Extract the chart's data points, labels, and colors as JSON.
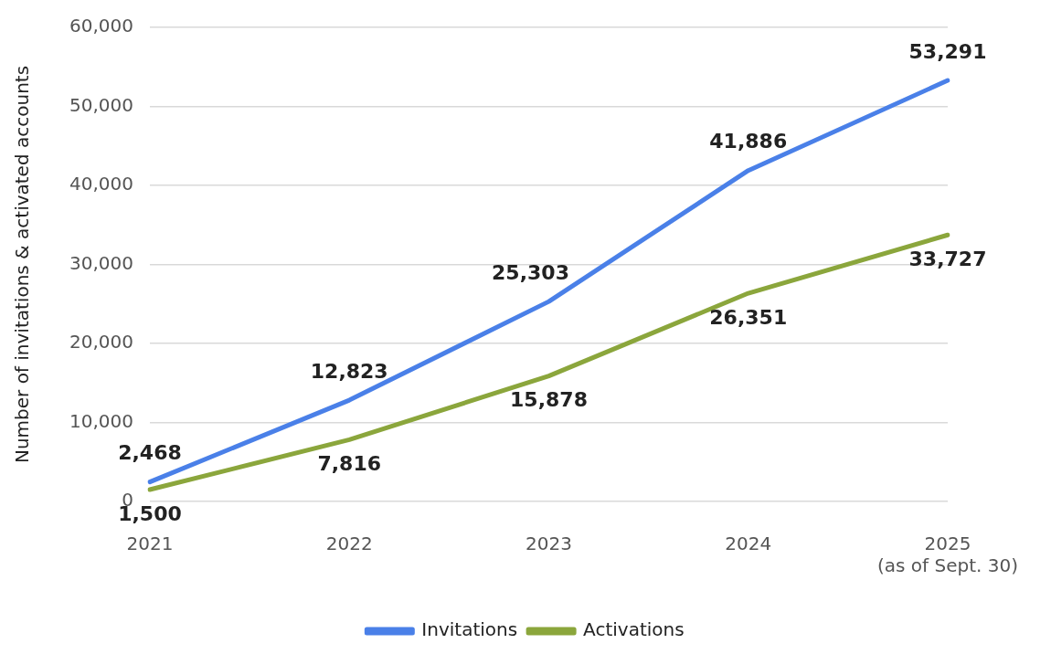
{
  "chart_data": {
    "type": "line",
    "ylabel": "Number of invitations & activated accounts",
    "categories": [
      "2021",
      "2022",
      "2023",
      "2024",
      "2025\n(as of Sept. 30)"
    ],
    "series": [
      {
        "name": "Invitations",
        "color": "#4a80e8",
        "values": [
          2468,
          12823,
          25303,
          41886,
          53291
        ],
        "value_labels": [
          "2,468",
          "12,823",
          "25,303",
          "41,886",
          "53,291"
        ]
      },
      {
        "name": "Activations",
        "color": "#8ba63c",
        "values": [
          1500,
          7816,
          15878,
          26351,
          33727
        ],
        "value_labels": [
          "1,500",
          "7,816",
          "15,878",
          "26,351",
          "33,727"
        ]
      }
    ],
    "ylim": [
      0,
      60000
    ],
    "yticks": [
      {
        "value": 0,
        "label": "0"
      },
      {
        "value": 10000,
        "label": "10,000"
      },
      {
        "value": 20000,
        "label": "20,000"
      },
      {
        "value": 30000,
        "label": "30,000"
      },
      {
        "value": 40000,
        "label": "40,000"
      },
      {
        "value": 50000,
        "label": "50,000"
      },
      {
        "value": 60000,
        "label": "60,000"
      }
    ],
    "grid": "y",
    "legend": "bottom",
    "marker": "none",
    "line_style": "solid"
  }
}
